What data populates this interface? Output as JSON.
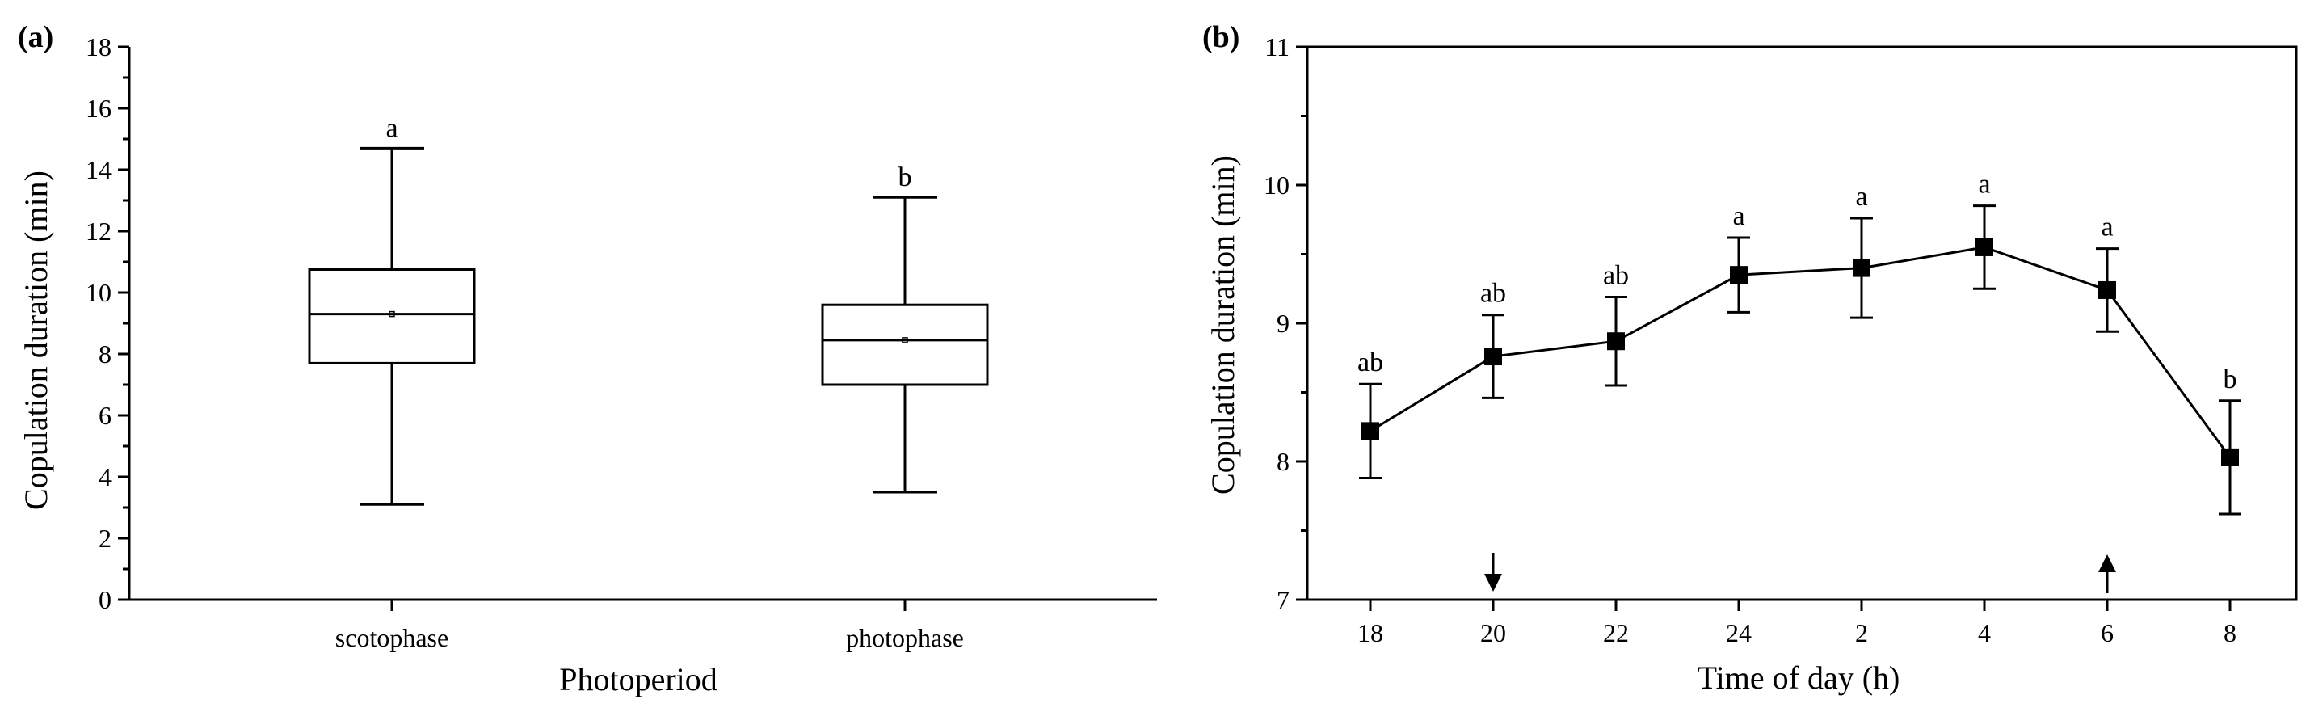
{
  "chart_data": [
    {
      "type": "box",
      "panel_label": "(a)",
      "xlabel": "Photoperiod",
      "ylabel": "Copulation duration (min)",
      "ylim": [
        0,
        18
      ],
      "yticks": [
        "0",
        "2",
        "4",
        "6",
        "8",
        "10",
        "12",
        "14",
        "16",
        "18"
      ],
      "categories": [
        "scotophase",
        "photophase"
      ],
      "boxes": [
        {
          "category": "scotophase",
          "whisker_low": 3.1,
          "q1": 7.7,
          "median": 9.3,
          "mean": 9.3,
          "q3": 10.75,
          "whisker_high": 14.7,
          "letter": "a"
        },
        {
          "category": "photophase",
          "whisker_low": 3.5,
          "q1": 7.0,
          "median": 8.45,
          "mean": 8.45,
          "q3": 9.6,
          "whisker_high": 13.1,
          "letter": "b"
        }
      ],
      "grid": false
    },
    {
      "type": "line",
      "panel_label": "(b)",
      "xlabel": "Time of day (h)",
      "ylabel": "Copulation duration (min)",
      "ylim": [
        7,
        11
      ],
      "yticks": [
        "7",
        "8",
        "9",
        "10",
        "11"
      ],
      "categories": [
        "18",
        "20",
        "22",
        "24",
        "2",
        "4",
        "6",
        "8"
      ],
      "values": [
        8.22,
        8.76,
        8.87,
        9.35,
        9.4,
        9.55,
        9.24,
        8.03
      ],
      "error": [
        0.34,
        0.3,
        0.32,
        0.27,
        0.36,
        0.3,
        0.3,
        0.41
      ],
      "letters": [
        "ab",
        "ab",
        "ab",
        "a",
        "a",
        "a",
        "a",
        "b"
      ],
      "arrows": [
        {
          "category": "20",
          "direction": "down"
        },
        {
          "category": "6",
          "direction": "up"
        }
      ],
      "grid": false
    }
  ]
}
